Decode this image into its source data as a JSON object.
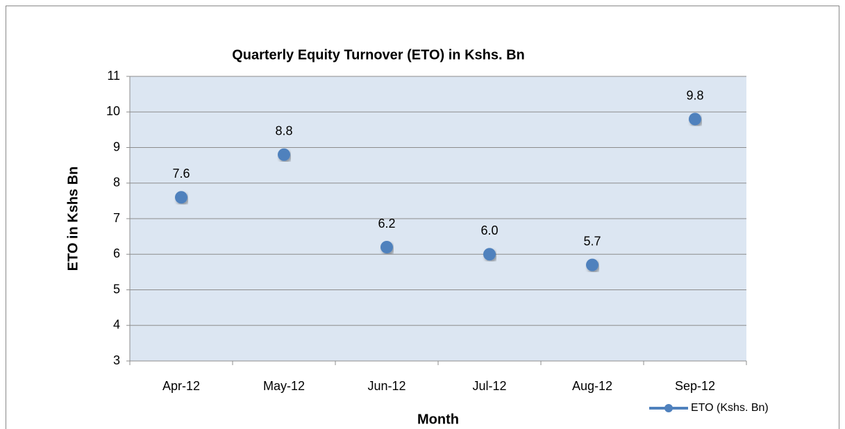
{
  "chart_data": {
    "type": "line",
    "title": "Quarterly Equity Turnover (ETO) in Kshs. Bn",
    "x_label": "Month",
    "y_label": "ETO in Kshs Bn",
    "categories": [
      "Apr-12",
      "May-12",
      "Jun-12",
      "Jul-12",
      "Aug-12",
      "Sep-12"
    ],
    "series": [
      {
        "name": "ETO (Kshs. Bn)",
        "color": "#4f81bd",
        "values": [
          7.6,
          8.8,
          6.2,
          6.0,
          5.7,
          9.8
        ],
        "value_labels": [
          "7.6",
          "8.8",
          "6.2",
          "6.0",
          "5.7",
          "9.8"
        ]
      }
    ],
    "ylim": [
      3,
      11
    ],
    "yticks": [
      3,
      4,
      5,
      6,
      7,
      8,
      9,
      10,
      11
    ],
    "grid": true,
    "legend": "bottom-right"
  }
}
